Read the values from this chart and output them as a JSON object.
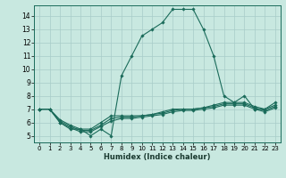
{
  "xlabel": "Humidex (Indice chaleur)",
  "bg_color": "#c8e8e0",
  "line_color": "#1a6b5a",
  "grid_color": "#a8ccc8",
  "xlim": [
    -0.5,
    23.5
  ],
  "ylim": [
    4.5,
    14.8
  ],
  "yticks": [
    5,
    6,
    7,
    8,
    9,
    10,
    11,
    12,
    13,
    14
  ],
  "xticks": [
    0,
    1,
    2,
    3,
    4,
    5,
    6,
    7,
    8,
    9,
    10,
    11,
    12,
    13,
    14,
    15,
    16,
    17,
    18,
    19,
    20,
    21,
    22,
    23
  ],
  "lines": [
    {
      "x": [
        0,
        1,
        2,
        3,
        4,
        5,
        6,
        7,
        8,
        9,
        10,
        11,
        12,
        13,
        14,
        15,
        16,
        17,
        18,
        19,
        20,
        21,
        22,
        23
      ],
      "y": [
        7.0,
        7.0,
        6.0,
        5.5,
        5.5,
        5.0,
        5.5,
        5.0,
        9.5,
        11.0,
        12.5,
        13.0,
        13.5,
        14.5,
        14.5,
        14.5,
        13.0,
        11.0,
        8.0,
        7.5,
        8.0,
        7.0,
        7.0,
        7.5
      ]
    },
    {
      "x": [
        0,
        1,
        2,
        3,
        4,
        5,
        6,
        7,
        8,
        9,
        10,
        11,
        12,
        13,
        14,
        15,
        16,
        17,
        18,
        19,
        20,
        21,
        22,
        23
      ],
      "y": [
        7.0,
        7.0,
        6.2,
        5.8,
        5.5,
        5.5,
        6.0,
        6.5,
        6.5,
        6.5,
        6.5,
        6.6,
        6.8,
        7.0,
        7.0,
        7.0,
        7.1,
        7.3,
        7.5,
        7.5,
        7.5,
        7.2,
        7.0,
        7.3
      ]
    },
    {
      "x": [
        0,
        1,
        2,
        3,
        4,
        5,
        6,
        7,
        8,
        9,
        10,
        11,
        12,
        13,
        14,
        15,
        16,
        17,
        18,
        19,
        20,
        21,
        22,
        23
      ],
      "y": [
        7.0,
        7.0,
        6.1,
        5.7,
        5.4,
        5.4,
        5.8,
        6.3,
        6.4,
        6.4,
        6.5,
        6.6,
        6.7,
        6.9,
        7.0,
        7.0,
        7.1,
        7.2,
        7.4,
        7.4,
        7.4,
        7.1,
        6.9,
        7.2
      ]
    },
    {
      "x": [
        0,
        1,
        2,
        3,
        4,
        5,
        6,
        7,
        8,
        9,
        10,
        11,
        12,
        13,
        14,
        15,
        16,
        17,
        18,
        19,
        20,
        21,
        22,
        23
      ],
      "y": [
        7.0,
        7.0,
        6.0,
        5.6,
        5.3,
        5.3,
        5.7,
        6.1,
        6.3,
        6.3,
        6.4,
        6.5,
        6.6,
        6.8,
        6.9,
        6.9,
        7.0,
        7.1,
        7.3,
        7.3,
        7.3,
        7.0,
        6.8,
        7.1
      ]
    }
  ]
}
